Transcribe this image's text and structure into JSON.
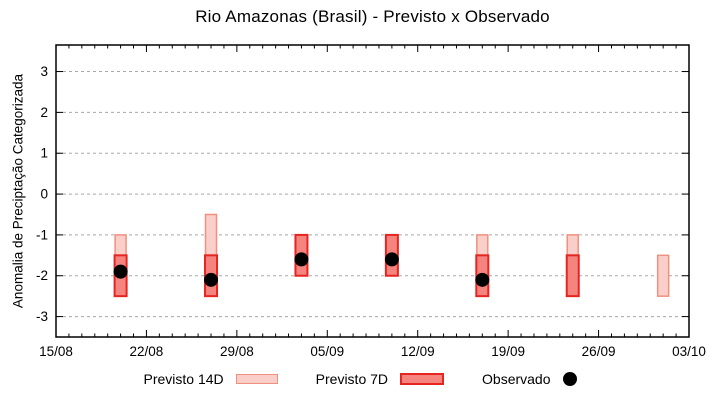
{
  "chart_data": {
    "type": "bar",
    "subtype": "range-bars-with-scatter",
    "title": "Rio Amazonas (Brasil) - Previsto x Observado",
    "ylabel": "Anomalia de Preciptação Categorizada",
    "xlabel": "",
    "ylim": [
      -3.5,
      3.65
    ],
    "xlim_days": [
      0,
      49
    ],
    "x_tick_interval_days": 7,
    "x_minor_tick_interval_days": 1,
    "grid": true,
    "legend_position": "bottom-outside",
    "x_ticks": [
      {
        "day": 0,
        "label": "15/08"
      },
      {
        "day": 7,
        "label": "22/08"
      },
      {
        "day": 14,
        "label": "29/08"
      },
      {
        "day": 21,
        "label": "05/09"
      },
      {
        "day": 28,
        "label": "12/09"
      },
      {
        "day": 35,
        "label": "19/09"
      },
      {
        "day": 42,
        "label": "26/09"
      },
      {
        "day": 49,
        "label": "03/10"
      }
    ],
    "y_ticks": [
      {
        "value": 3,
        "label": "3"
      },
      {
        "value": 2,
        "label": "2"
      },
      {
        "value": 1,
        "label": "1"
      },
      {
        "value": 0,
        "label": "0"
      },
      {
        "value": -1,
        "label": "-1"
      },
      {
        "value": -2,
        "label": "-2"
      },
      {
        "value": -3,
        "label": "-3"
      }
    ],
    "series": [
      {
        "name": "Previsto 14D",
        "type": "range-bar",
        "fill": "#fbcfc9",
        "stroke": "#f0907e",
        "points": [
          {
            "date": "20/08",
            "day": 5,
            "high": -1.0,
            "low": -2.5
          },
          {
            "date": "27/08",
            "day": 12,
            "high": -0.5,
            "low": -2.5
          },
          {
            "date": "17/09",
            "day": 33,
            "high": -1.0,
            "low": -2.5
          },
          {
            "date": "24/09",
            "day": 40,
            "high": -1.0,
            "low": -2.5
          },
          {
            "date": "01/10",
            "day": 47,
            "high": -1.5,
            "low": -2.5
          }
        ]
      },
      {
        "name": "Previsto 7D",
        "type": "range-bar",
        "fill": "#f5847e",
        "stroke": "#e62420",
        "points": [
          {
            "date": "20/08",
            "day": 5,
            "high": -1.5,
            "low": -2.5
          },
          {
            "date": "27/08",
            "day": 12,
            "high": -1.5,
            "low": -2.5
          },
          {
            "date": "03/09",
            "day": 19,
            "high": -1.0,
            "low": -2.0
          },
          {
            "date": "10/09",
            "day": 26,
            "high": -1.0,
            "low": -2.0
          },
          {
            "date": "17/09",
            "day": 33,
            "high": -1.5,
            "low": -2.5
          },
          {
            "date": "24/09",
            "day": 40,
            "high": -1.5,
            "low": -2.5
          }
        ]
      },
      {
        "name": "Observado",
        "type": "scatter",
        "color": "#000000",
        "points": [
          {
            "date": "20/08",
            "day": 5,
            "value": -1.9
          },
          {
            "date": "27/08",
            "day": 12,
            "value": -2.1
          },
          {
            "date": "03/09",
            "day": 19,
            "value": -1.6
          },
          {
            "date": "10/09",
            "day": 26,
            "value": -1.6
          },
          {
            "date": "17/09",
            "day": 33,
            "value": -2.1
          }
        ]
      }
    ],
    "colors": {
      "grid": "#a8a8a8",
      "axis": "#000000",
      "text": "#000000"
    }
  }
}
